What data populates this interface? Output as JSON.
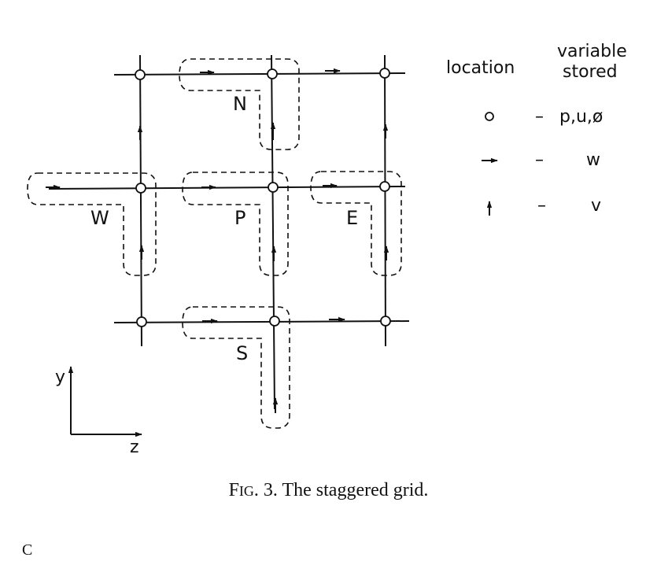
{
  "diagram": {
    "node_labels": {
      "north": "N",
      "west": "W",
      "center": "P",
      "east": "E",
      "south": "S"
    },
    "axes": {
      "vertical": "y",
      "horizontal": "z"
    },
    "legend": {
      "header_location": "location",
      "header_variable_line1": "variable",
      "header_variable_line2": "stored",
      "rows": [
        {
          "symbol": "circle",
          "dash": "–",
          "variables": "p,u,ø"
        },
        {
          "symbol": "horizontal-arrow",
          "dash": "–",
          "variables": "w"
        },
        {
          "symbol": "vertical-arrow",
          "dash": "–",
          "variables": "v"
        }
      ]
    }
  },
  "caption": {
    "prefix": "F",
    "small_caps": "IG",
    "text": ". 3. The staggered grid."
  },
  "corner_text": "C"
}
